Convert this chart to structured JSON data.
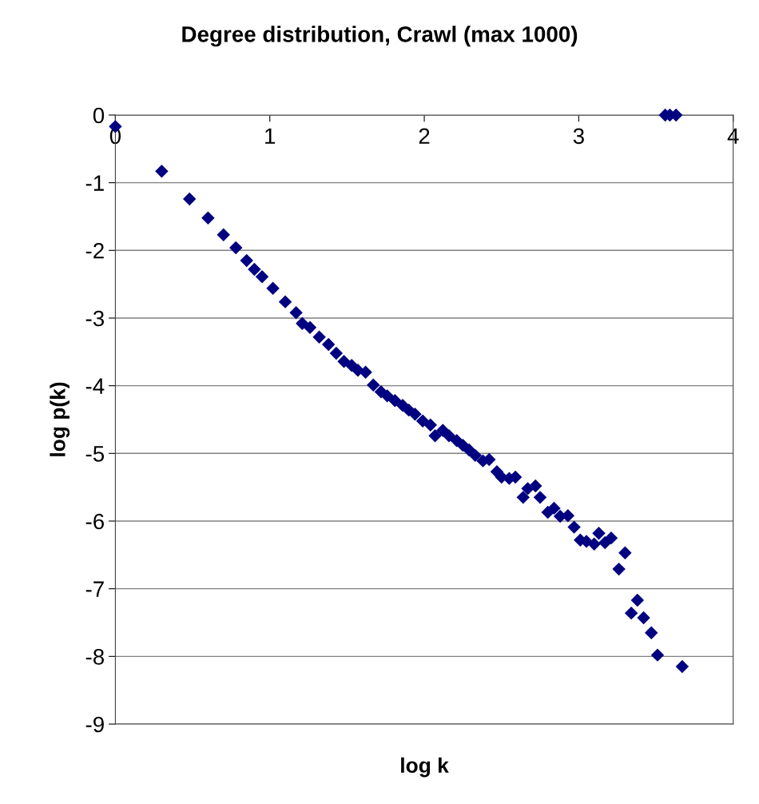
{
  "chart_data": {
    "type": "scatter",
    "title": "Degree distribution, Crawl (max 1000)",
    "xlabel": "log k",
    "ylabel": "log p(k)",
    "x": [
      0,
      0.3,
      0.48,
      0.6,
      0.7,
      0.78,
      0.85,
      0.9,
      0.95,
      1.02,
      1.1,
      1.17,
      1.21,
      1.26,
      1.32,
      1.38,
      1.43,
      1.48,
      1.53,
      1.57,
      1.62,
      1.67,
      1.72,
      1.76,
      1.81,
      1.86,
      1.9,
      1.94,
      1.99,
      2.04,
      2.07,
      2.12,
      2.16,
      2.21,
      2.25,
      2.29,
      2.33,
      2.38,
      2.42,
      2.47,
      2.5,
      2.55,
      2.59,
      2.64,
      2.67,
      2.72,
      2.75,
      2.8,
      2.84,
      2.88,
      2.93,
      2.97,
      3.01,
      3.05,
      3.1,
      3.13,
      3.17,
      3.21,
      3.26,
      3.3,
      3.34,
      3.38,
      3.42,
      3.47,
      3.51,
      3.56,
      3.59,
      3.63,
      3.67
    ],
    "values": [
      -0.17,
      -0.83,
      -1.24,
      -1.52,
      -1.77,
      -1.96,
      -2.15,
      -2.28,
      -2.39,
      -2.56,
      -2.76,
      -2.92,
      -3.08,
      -3.14,
      -3.28,
      -3.39,
      -3.52,
      -3.64,
      -3.7,
      -3.77,
      -3.8,
      -3.99,
      -4.09,
      -4.15,
      -4.22,
      -4.29,
      -4.36,
      -4.42,
      -4.52,
      -4.58,
      -4.74,
      -4.66,
      -4.74,
      -4.81,
      -4.88,
      -4.95,
      -5.03,
      -5.11,
      -5.09,
      -5.27,
      -5.35,
      -5.37,
      -5.35,
      -5.65,
      -5.52,
      -5.48,
      -5.65,
      -5.87,
      -5.81,
      -5.93,
      -5.92,
      -6.09,
      -6.28,
      -6.3,
      -6.34,
      -6.18,
      -6.32,
      -6.25,
      -6.71,
      -6.47,
      -7.36,
      -7.17,
      -7.43,
      -7.65,
      -7.98,
      0,
      0,
      0,
      -8.15
    ],
    "color": "#000080",
    "marker": "diamond",
    "xlim": [
      0,
      4
    ],
    "ylim": [
      -9,
      0
    ],
    "xticks": [
      0,
      1,
      2,
      3,
      4
    ],
    "yticks": [
      -9,
      -8,
      -7,
      -6,
      -5,
      -4,
      -3,
      -2,
      -1,
      0
    ],
    "grid": "y",
    "legend": false
  }
}
